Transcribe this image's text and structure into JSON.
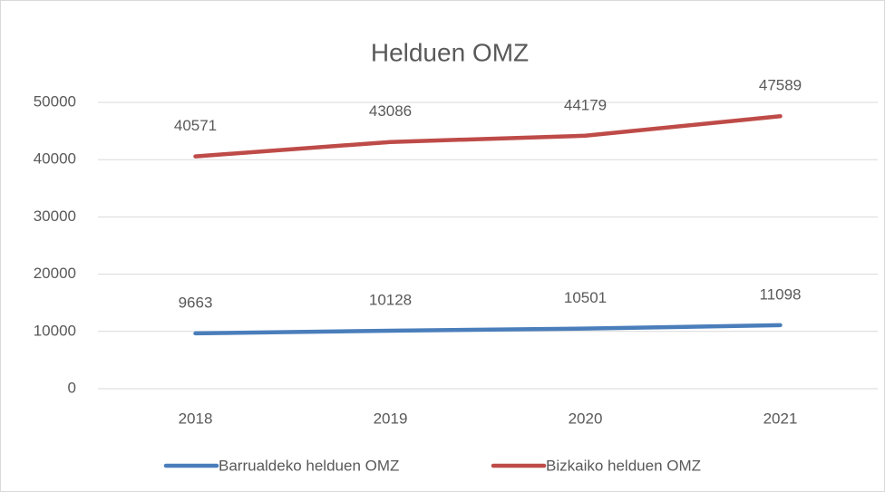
{
  "chart_data": {
    "type": "line",
    "title": "Helduen OMZ",
    "categories": [
      "2018",
      "2019",
      "2020",
      "2021"
    ],
    "series": [
      {
        "name": "Barrualdeko helduen OMZ",
        "color": "#4a7ebb",
        "values": [
          9663,
          10128,
          10501,
          11098
        ]
      },
      {
        "name": "Bizkaiko helduen OMZ",
        "color": "#be4b48",
        "values": [
          40571,
          43086,
          44179,
          47589
        ]
      }
    ],
    "ylim": [
      0,
      50000
    ],
    "yticks": [
      0,
      10000,
      20000,
      30000,
      40000,
      50000
    ],
    "grid": true,
    "legend": "bottom"
  }
}
